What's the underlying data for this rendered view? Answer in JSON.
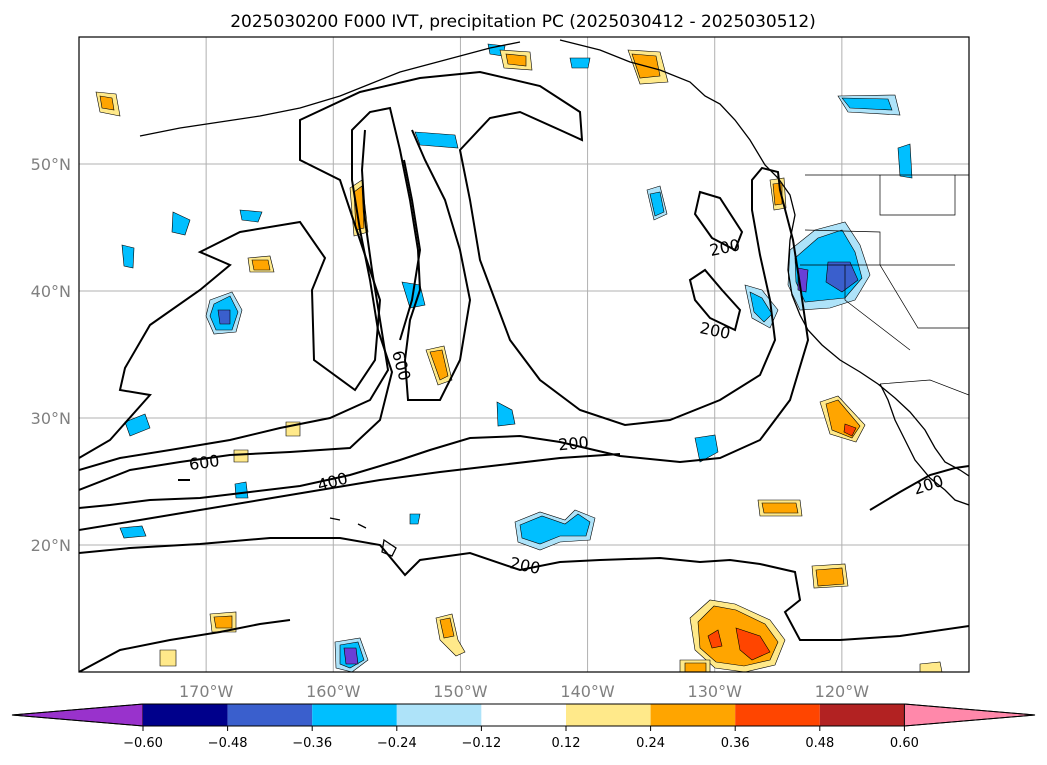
{
  "title": "2025030200 F000 IVT, precipitation PC (2025030412 - 2025030512)",
  "map": {
    "lon_range": [
      -180,
      -110
    ],
    "lat_range": [
      10,
      60
    ],
    "lon_ticks": [
      {
        "value": -170,
        "label": "170°W"
      },
      {
        "value": -160,
        "label": "160°W"
      },
      {
        "value": -150,
        "label": "150°W"
      },
      {
        "value": -140,
        "label": "140°W"
      },
      {
        "value": -130,
        "label": "130°W"
      },
      {
        "value": -120,
        "label": "120°W"
      }
    ],
    "lat_ticks": [
      {
        "value": 20,
        "label": "20°N"
      },
      {
        "value": 30,
        "label": "30°N"
      },
      {
        "value": 40,
        "label": "40°N"
      },
      {
        "value": 50,
        "label": "50°N"
      }
    ],
    "grid": true
  },
  "ivt_contour_labels": [
    "600",
    "400",
    "600",
    "200",
    "200",
    "200",
    "200",
    "200"
  ],
  "colorbar": {
    "ticks": [
      "−0.60",
      "−0.48",
      "−0.36",
      "−0.24",
      "−0.12",
      "0.12",
      "0.24",
      "0.36",
      "0.48",
      "0.60"
    ],
    "colors": [
      "#9932cc",
      "#00008b",
      "#3a5fcd",
      "#00bfff",
      "#aee3f9",
      "#ffffff",
      "#ffe98a",
      "#ffa500",
      "#ff4500",
      "#b22222",
      "#ff88aa"
    ]
  },
  "precip_colors": {
    "light_blue": "#aee3f9",
    "blue": "#00bfff",
    "mid_blue": "#3a5fcd",
    "purple": "#6a3fd6",
    "light_yellow": "#ffe98a",
    "orange": "#ffa500",
    "red_orange": "#ff4500"
  }
}
